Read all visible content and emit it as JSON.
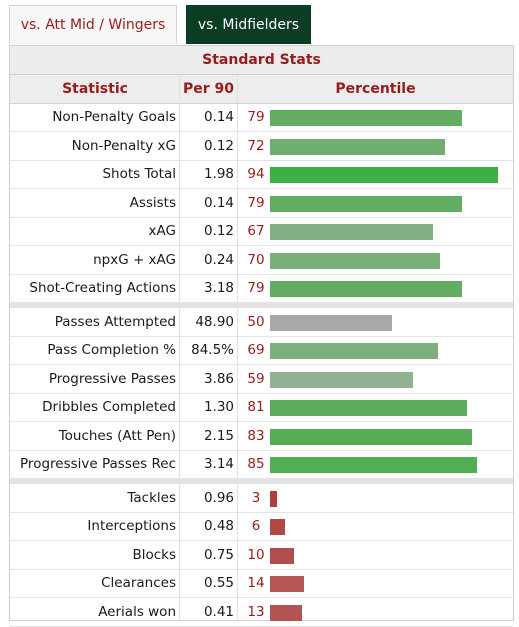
{
  "tabs": [
    {
      "label": "vs. Att Mid / Wingers"
    },
    {
      "label": "vs. Midfielders"
    }
  ],
  "table": {
    "caption": "Standard Stats",
    "headers": {
      "statistic": "Statistic",
      "per90": "Per 90",
      "percentile": "Percentile"
    },
    "colors": {
      "green_high": "#3cb043",
      "green": "#63ad63",
      "green_muted": "#82b082",
      "green_pale": "#92b392",
      "gray": "#a8a8a8",
      "red": "#b55555",
      "label_red": "#9b1b1b"
    },
    "groups": [
      [
        {
          "stat": "Non-Penalty Goals",
          "per90": "0.14",
          "percentile": 79,
          "color": "#63ad63"
        },
        {
          "stat": "Non-Penalty xG",
          "per90": "0.12",
          "percentile": 72,
          "color": "#70ae70"
        },
        {
          "stat": "Shots Total",
          "per90": "1.98",
          "percentile": 94,
          "color": "#3cb043"
        },
        {
          "stat": "Assists",
          "per90": "0.14",
          "percentile": 79,
          "color": "#63ad63"
        },
        {
          "stat": "xAG",
          "per90": "0.12",
          "percentile": 67,
          "color": "#82b082"
        },
        {
          "stat": "npxG + xAG",
          "per90": "0.24",
          "percentile": 70,
          "color": "#79af79"
        },
        {
          "stat": "Shot-Creating Actions",
          "per90": "3.18",
          "percentile": 79,
          "color": "#63ad63"
        }
      ],
      [
        {
          "stat": "Passes Attempted",
          "per90": "48.90",
          "percentile": 50,
          "color": "#a8a8a8"
        },
        {
          "stat": "Pass Completion %",
          "per90": "84.5%",
          "percentile": 69,
          "color": "#7daf7d"
        },
        {
          "stat": "Progressive Passes",
          "per90": "3.86",
          "percentile": 59,
          "color": "#92b392"
        },
        {
          "stat": "Dribbles Completed",
          "per90": "1.30",
          "percentile": 81,
          "color": "#5bad5b"
        },
        {
          "stat": "Touches (Att Pen)",
          "per90": "2.15",
          "percentile": 83,
          "color": "#57ad57"
        },
        {
          "stat": "Progressive Passes Rec",
          "per90": "3.14",
          "percentile": 85,
          "color": "#52ae52"
        }
      ],
      [
        {
          "stat": "Tackles",
          "per90": "0.96",
          "percentile": 3,
          "color": "#b03f3f"
        },
        {
          "stat": "Interceptions",
          "per90": "0.48",
          "percentile": 6,
          "color": "#b24747"
        },
        {
          "stat": "Blocks",
          "per90": "0.75",
          "percentile": 10,
          "color": "#b24d4d"
        },
        {
          "stat": "Clearances",
          "per90": "0.55",
          "percentile": 14,
          "color": "#b55555"
        },
        {
          "stat": "Aerials won",
          "per90": "0.41",
          "percentile": 13,
          "color": "#b45353"
        }
      ]
    ]
  }
}
